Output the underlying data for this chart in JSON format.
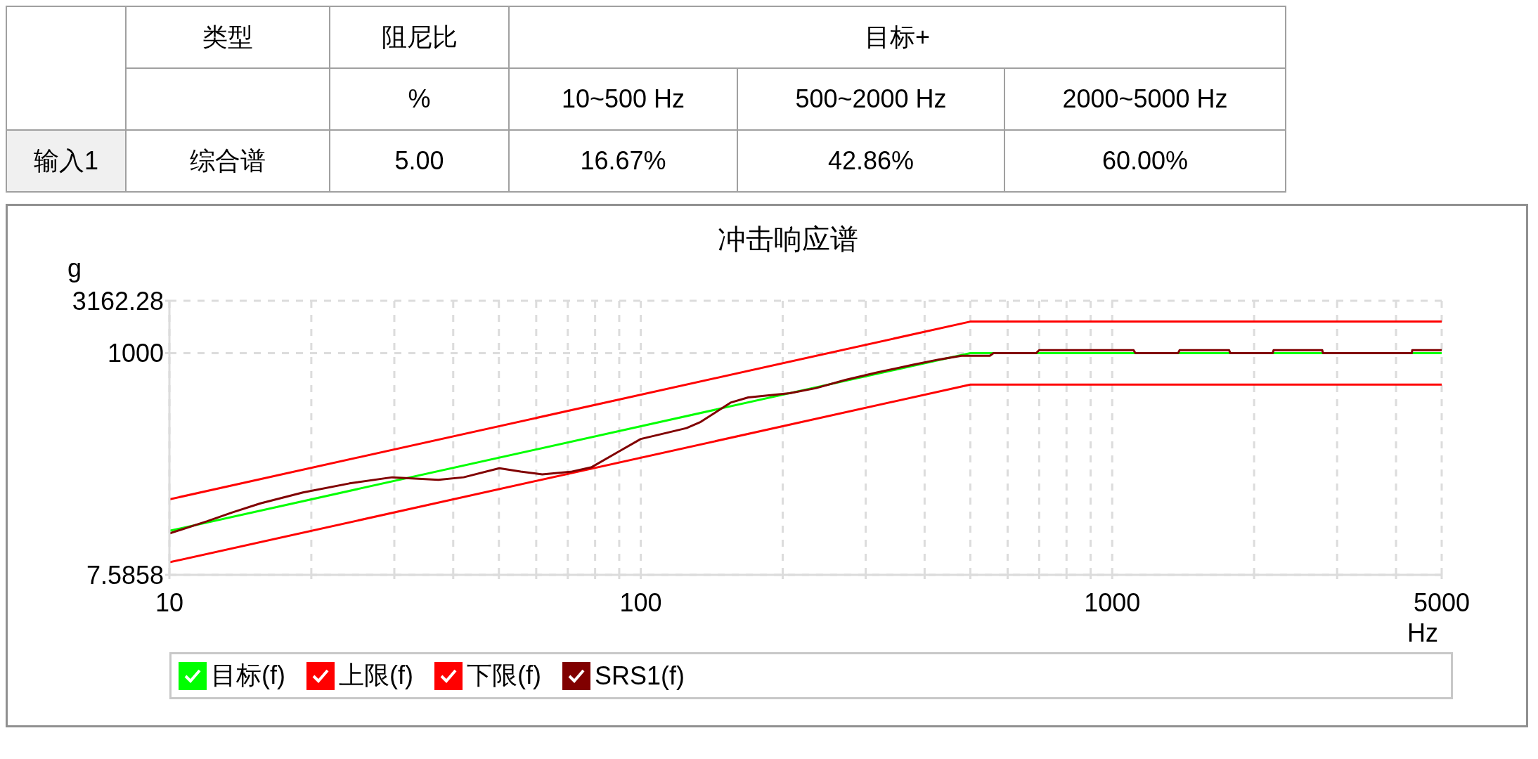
{
  "chart_data": {
    "type": "line",
    "title": "冲击响应谱",
    "xlabel": "Hz",
    "ylabel": "g",
    "annotations": [
      "类型",
      "阻尼比",
      "目标+",
      "%",
      "10~500 Hz",
      "500~2000 Hz",
      "2000~5000 Hz",
      "输入1",
      "综合谱",
      "5.00",
      "16.67%",
      "42.86%",
      "60.00%"
    ],
    "log": "xy",
    "xlim": [
      10,
      5000
    ],
    "ylim": [
      7.5858,
      3162.28
    ],
    "xticks": [
      10,
      {
        "value": 20,
        "label": null
      },
      {
        "value": 30,
        "label": null
      },
      {
        "value": 40,
        "label": null
      },
      {
        "value": 50,
        "label": null
      },
      {
        "value": 60,
        "label": null
      },
      {
        "value": 70,
        "label": null
      },
      {
        "value": 80,
        "label": null
      },
      {
        "value": 90,
        "label": null
      },
      100,
      {
        "value": 200,
        "label": null
      },
      {
        "value": 300,
        "label": null
      },
      {
        "value": 400,
        "label": null
      },
      {
        "value": 500,
        "label": null
      },
      {
        "value": 600,
        "label": null
      },
      {
        "value": 700,
        "label": null
      },
      {
        "value": 800,
        "label": null
      },
      {
        "value": 900,
        "label": null
      },
      1000,
      {
        "value": 2000,
        "label": null
      },
      {
        "value": 3000,
        "label": null
      },
      {
        "value": 4000,
        "label": null
      },
      5000
    ],
    "yticks": [
      7.5858,
      1000,
      3162.28
    ],
    "grid": true,
    "legend": "bottom",
    "marker": "none",
    "line_style": "solid",
    "series": [
      {
        "name": "目标(f)",
        "color": "#00ff00",
        "x": [
          10,
          500,
          5000
        ],
        "values": [
          20,
          1000,
          1000
        ]
      },
      {
        "name": "上限(f)",
        "color": "#ff0000",
        "x": [
          10,
          500,
          5000
        ],
        "values": [
          40,
          2000,
          2000
        ]
      },
      {
        "name": "下限(f)",
        "color": "#ff0000",
        "x": [
          10,
          500,
          5000
        ],
        "values": [
          10,
          500,
          500
        ]
      },
      {
        "name": "SRS1(f)",
        "color": "#800000",
        "x": [
          10,
          12,
          13.6,
          15.6,
          19.2,
          24.1,
          29.7,
          37.2,
          42.1,
          50.1,
          55.6,
          61.8,
          71,
          78.7,
          89,
          100,
          113.5,
          125,
          134,
          155,
          169,
          207,
          235,
          272,
          317,
          378,
          428,
          479,
          550,
          560,
          690,
          700,
          1110,
          1120,
          1380,
          1390,
          1770,
          1780,
          2190,
          2200,
          2790,
          2800,
          4320,
          4330,
          5000
        ],
        "values": [
          18.9,
          24.6,
          30,
          36.6,
          46.5,
          56.8,
          65,
          61.5,
          65,
          79.4,
          73.8,
          69.3,
          73.3,
          81.3,
          112,
          151,
          173,
          192,
          220,
          336,
          377,
          413,
          462,
          555,
          652,
          774,
          867,
          942,
          942,
          1000,
          1000,
          1066,
          1066,
          1000,
          1000,
          1066,
          1066,
          1000,
          1000,
          1066,
          1066,
          1000,
          1000,
          1066,
          1066
        ]
      }
    ]
  }
}
